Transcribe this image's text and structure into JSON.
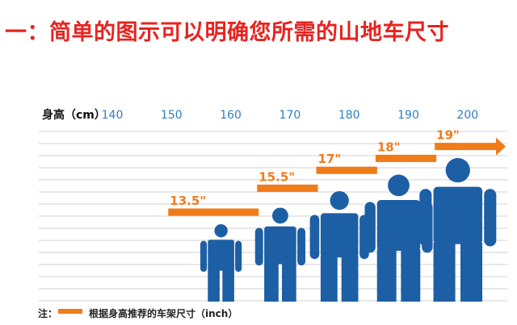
{
  "title": "一：简单的图示可以明确您所需的山地车尺寸",
  "chart_data": {
    "type": "bar",
    "xlabel": "身高（cm）",
    "x_ticks": [
      140,
      150,
      160,
      170,
      180,
      190,
      200
    ],
    "xlim": [
      140,
      200
    ],
    "series": [
      {
        "legend": "根据身高推荐的车架尺寸（inch）",
        "unit": "inch",
        "bars": [
          {
            "label": "13.5\"",
            "value": 13.5,
            "from_height": 150,
            "to_height": 165
          },
          {
            "label": "15.5\"",
            "value": 15.5,
            "from_height": 165,
            "to_height": 175
          },
          {
            "label": "17\"",
            "value": 17,
            "from_height": 175,
            "to_height": 185
          },
          {
            "label": "18\"",
            "value": 18,
            "from_height": 185,
            "to_height": 195
          },
          {
            "label": "19\"",
            "value": 19,
            "from_height": 195,
            "to_height": 200,
            "open_ended": true
          }
        ]
      }
    ],
    "figures_height_cm": [
      160,
      170,
      180,
      190,
      200
    ],
    "legend_prefix": "注：",
    "grid": true,
    "colors": {
      "bar": "#f07b19",
      "figure": "#1d5fa5",
      "tick": "#2f7fc3",
      "title": "#e8231f",
      "grid": "#d0d0d0"
    }
  }
}
